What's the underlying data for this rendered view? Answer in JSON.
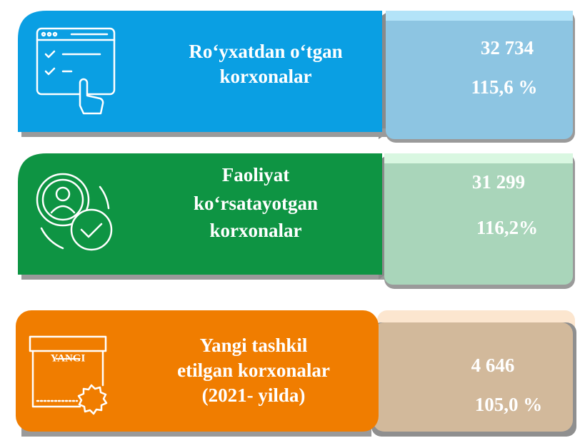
{
  "cards": [
    {
      "title_lines": [
        "Ro‘yxatdan o‘tgan",
        "korxonalar"
      ],
      "value": "32 734",
      "percent": "115,6 %"
    },
    {
      "title_lines": [
        "Faoliyat",
        "ko‘rsatayotgan",
        "korxonalar"
      ],
      "value": "31 299",
      "percent": "116,2%"
    },
    {
      "title_lines": [
        "Yangi tashkil",
        "etilgan korxonalar",
        "(2021- yilda)"
      ],
      "value": "4 646",
      "percent": "105,0 %",
      "icon_label": "YANGI"
    }
  ]
}
